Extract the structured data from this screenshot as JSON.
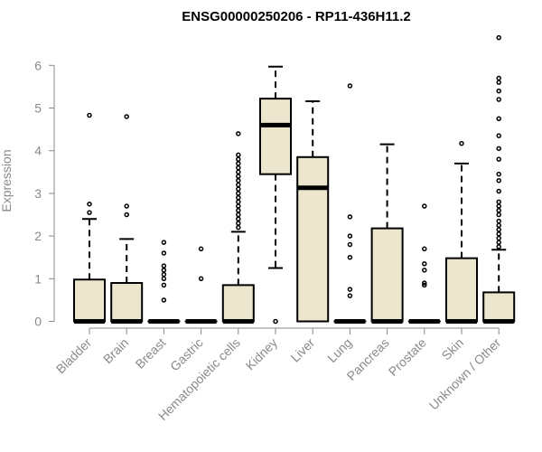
{
  "chart_data": {
    "type": "box",
    "title": "ENSG00000250206 - RP11-436H11.2",
    "ylabel": "Expression",
    "xlabel": "",
    "ylim": [
      0,
      6.7
    ],
    "yticks": [
      0,
      1,
      2,
      3,
      4,
      5,
      6
    ],
    "box_fill": "#ede6cf",
    "categories": [
      "Bladder",
      "Brain",
      "Breast",
      "Gastric",
      "Hematopoietic cells",
      "Kidney",
      "Liver",
      "Lung",
      "Pancreas",
      "Prostate",
      "Skin",
      "Unknown / Other"
    ],
    "boxes": [
      {
        "q1": 0,
        "median": 0,
        "q3": 0.98,
        "whisker_low": 0,
        "whisker_high": 2.4,
        "outliers": [
          2.55,
          2.75,
          4.83
        ]
      },
      {
        "q1": 0,
        "median": 0,
        "q3": 0.9,
        "whisker_low": 0,
        "whisker_high": 1.93,
        "outliers": [
          2.5,
          2.7,
          4.8
        ]
      },
      {
        "q1": 0,
        "median": 0,
        "q3": 0,
        "whisker_low": 0,
        "whisker_high": 0,
        "outliers": [
          0.5,
          0.85,
          1.0,
          1.1,
          1.2,
          1.3,
          1.6,
          1.85
        ]
      },
      {
        "q1": 0,
        "median": 0,
        "q3": 0,
        "whisker_low": 0,
        "whisker_high": 0,
        "outliers": [
          1.0,
          1.7
        ]
      },
      {
        "q1": 0,
        "median": 0,
        "q3": 0.85,
        "whisker_low": 0,
        "whisker_high": 2.1,
        "outliers": [
          2.2,
          2.3,
          2.4,
          2.5,
          2.6,
          2.7,
          2.8,
          2.9,
          3.0,
          3.1,
          3.2,
          3.3,
          3.4,
          3.5,
          3.6,
          3.7,
          3.8,
          3.9,
          4.4
        ]
      },
      {
        "q1": 3.45,
        "median": 4.6,
        "q3": 5.22,
        "whisker_low": 1.25,
        "whisker_high": 5.97,
        "outliers": [
          0
        ]
      },
      {
        "q1": 0,
        "median": 3.13,
        "q3": 3.85,
        "whisker_low": 0,
        "whisker_high": 5.16,
        "outliers": []
      },
      {
        "q1": 0,
        "median": 0,
        "q3": 0,
        "whisker_low": 0,
        "whisker_high": 0,
        "outliers": [
          0.6,
          0.75,
          1.5,
          1.8,
          2.0,
          2.45,
          5.52
        ]
      },
      {
        "q1": 0,
        "median": 0,
        "q3": 2.18,
        "whisker_low": 0,
        "whisker_high": 4.15,
        "outliers": []
      },
      {
        "q1": 0,
        "median": 0,
        "q3": 0,
        "whisker_low": 0,
        "whisker_high": 0,
        "outliers": [
          0.85,
          0.9,
          1.2,
          1.35,
          1.7,
          2.7
        ]
      },
      {
        "q1": 0,
        "median": 0,
        "q3": 1.48,
        "whisker_low": 0,
        "whisker_high": 3.7,
        "outliers": [
          4.17
        ]
      },
      {
        "q1": 0,
        "median": 0,
        "q3": 0.68,
        "whisker_low": 0,
        "whisker_high": 1.68,
        "outliers": [
          1.75,
          1.85,
          1.95,
          2.05,
          2.15,
          2.25,
          2.35,
          2.5,
          2.6,
          2.7,
          2.8,
          3.05,
          3.3,
          3.45,
          3.8,
          4.05,
          4.35,
          4.75,
          5.2,
          5.4,
          5.6,
          5.7,
          6.65
        ]
      }
    ]
  }
}
